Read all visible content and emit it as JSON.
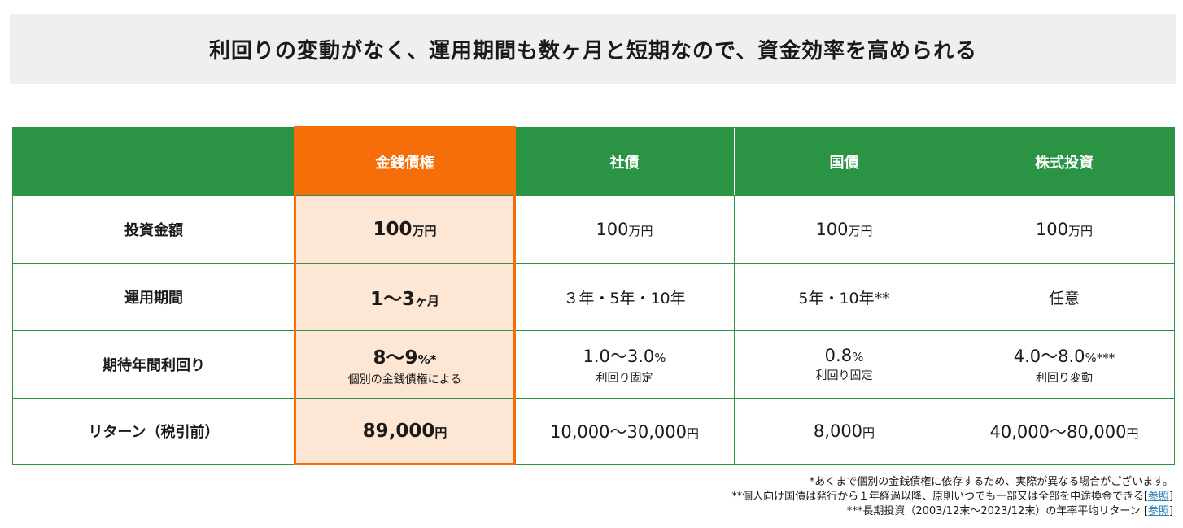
{
  "banner": {
    "title": "利回りの変動がなく、運用期間も数ヶ月と短期なので、資金効率を高められる"
  },
  "table": {
    "columns": [
      "",
      "金銭債権",
      "社債",
      "国債",
      "株式投資"
    ],
    "rows": [
      {
        "label": "投資金額",
        "cells": [
          {
            "value": "100",
            "unit": "万円",
            "sub": ""
          },
          {
            "value": "100",
            "unit": "万円",
            "sub": ""
          },
          {
            "value": "100",
            "unit": "万円",
            "sub": ""
          },
          {
            "value": "100",
            "unit": "万円",
            "sub": ""
          }
        ]
      },
      {
        "label": "運用期間",
        "cells": [
          {
            "value": "1〜3",
            "unit": "ヶ月",
            "sub": ""
          },
          {
            "value": "３年・5年・10年",
            "unit": "",
            "sub": ""
          },
          {
            "value": "5年・10年**",
            "unit": "",
            "sub": ""
          },
          {
            "value": "任意",
            "unit": "",
            "sub": ""
          }
        ]
      },
      {
        "label": "期待年間利回り",
        "cells": [
          {
            "value": "8〜9",
            "unit": "%*",
            "sub": "個別の金銭債権による"
          },
          {
            "value": "1.0〜3.0",
            "unit": "%",
            "sub": "利回り固定"
          },
          {
            "value": "0.8",
            "unit": "%",
            "sub": "利回り固定"
          },
          {
            "value": "4.0〜8.0",
            "unit": "%***",
            "sub": "利回り変動"
          }
        ]
      },
      {
        "label": "リターン（税引前）",
        "cells": [
          {
            "value": "89,000",
            "unit": "円",
            "sub": ""
          },
          {
            "value": "10,000〜30,000",
            "unit": "円",
            "sub": ""
          },
          {
            "value": "8,000",
            "unit": "円",
            "sub": ""
          },
          {
            "value": "40,000〜80,000",
            "unit": "円",
            "sub": ""
          }
        ]
      }
    ]
  },
  "notes": {
    "n1": "*あくまで個別の金銭債権に依存するため、実際が異なる場合がございます。",
    "n2_text": "**個人向け国債は発行から１年経過以降、原則いつでも一部又は全部を中途換金できる",
    "n2_ref": "参照",
    "n3_text": "***長期投資（2003/12末〜2023/12末）の年率平均リターン",
    "n3_ref": "参照"
  },
  "colors": {
    "green": "#2a9444",
    "orange": "#f56e0a",
    "highlight_bg": "#fde6d3",
    "banner_bg": "#efefef"
  }
}
